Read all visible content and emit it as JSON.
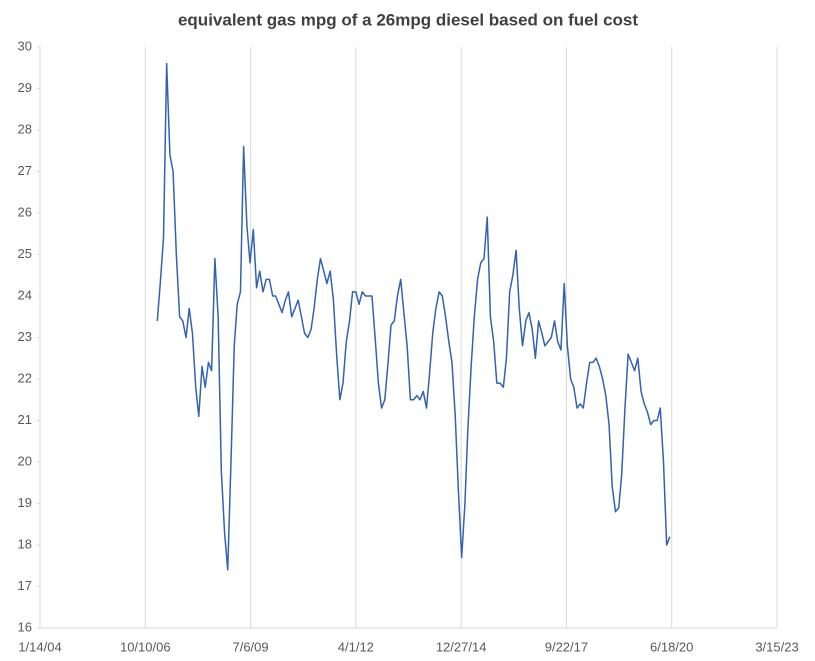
{
  "chart_data": {
    "type": "line",
    "title": "equivalent gas mpg of a 26mpg diesel based on fuel cost",
    "x": [
      "2007-02-01",
      "2007-03-01",
      "2007-04-01",
      "2007-05-01",
      "2007-06-01",
      "2007-07-01",
      "2007-08-01",
      "2007-09-01",
      "2007-10-01",
      "2007-11-01",
      "2007-12-01",
      "2008-01-01",
      "2008-02-01",
      "2008-03-01",
      "2008-04-01",
      "2008-05-01",
      "2008-06-01",
      "2008-07-01",
      "2008-08-01",
      "2008-09-01",
      "2008-10-01",
      "2008-11-01",
      "2008-12-01",
      "2009-01-01",
      "2009-02-01",
      "2009-03-01",
      "2009-04-01",
      "2009-05-01",
      "2009-06-01",
      "2009-07-01",
      "2009-08-01",
      "2009-09-01",
      "2009-10-01",
      "2009-11-01",
      "2009-12-01",
      "2010-01-01",
      "2010-02-01",
      "2010-03-01",
      "2010-04-01",
      "2010-05-01",
      "2010-06-01",
      "2010-07-01",
      "2010-08-01",
      "2010-09-01",
      "2010-10-01",
      "2010-11-01",
      "2010-12-01",
      "2011-01-01",
      "2011-02-01",
      "2011-03-01",
      "2011-04-01",
      "2011-05-01",
      "2011-06-01",
      "2011-07-01",
      "2011-08-01",
      "2011-09-01",
      "2011-10-01",
      "2011-11-01",
      "2011-12-01",
      "2012-01-01",
      "2012-02-01",
      "2012-03-01",
      "2012-04-01",
      "2012-05-01",
      "2012-06-01",
      "2012-07-01",
      "2012-08-01",
      "2012-09-01",
      "2012-10-01",
      "2012-11-01",
      "2012-12-01",
      "2013-01-01",
      "2013-02-01",
      "2013-03-01",
      "2013-04-01",
      "2013-05-01",
      "2013-06-01",
      "2013-07-01",
      "2013-08-01",
      "2013-09-01",
      "2013-10-01",
      "2013-11-01",
      "2013-12-01",
      "2014-01-01",
      "2014-02-01",
      "2014-03-01",
      "2014-04-01",
      "2014-05-01",
      "2014-06-01",
      "2014-07-01",
      "2014-08-01",
      "2014-09-01",
      "2014-10-01",
      "2014-11-01",
      "2014-12-01",
      "2015-01-01",
      "2015-02-01",
      "2015-03-01",
      "2015-04-01",
      "2015-05-01",
      "2015-06-01",
      "2015-07-01",
      "2015-08-01",
      "2015-09-01",
      "2015-10-01",
      "2015-11-01",
      "2015-12-01",
      "2016-01-01",
      "2016-02-01",
      "2016-03-01",
      "2016-04-01",
      "2016-05-01",
      "2016-06-01",
      "2016-07-01",
      "2016-08-01",
      "2016-09-01",
      "2016-10-01",
      "2016-11-01",
      "2016-12-01",
      "2017-01-01",
      "2017-02-01",
      "2017-03-01",
      "2017-04-01",
      "2017-05-01",
      "2017-06-01",
      "2017-07-01",
      "2017-08-01",
      "2017-09-01",
      "2017-10-01",
      "2017-11-01",
      "2017-12-01",
      "2018-01-01",
      "2018-02-01",
      "2018-03-01",
      "2018-04-01",
      "2018-05-01",
      "2018-06-01",
      "2018-07-01",
      "2018-08-01",
      "2018-09-01",
      "2018-10-01",
      "2018-11-01",
      "2018-12-01",
      "2019-01-01",
      "2019-02-01",
      "2019-03-01",
      "2019-04-01",
      "2019-05-01",
      "2019-06-01",
      "2019-07-01",
      "2019-08-01",
      "2019-09-01",
      "2019-10-01",
      "2019-11-01",
      "2019-12-01",
      "2020-01-01",
      "2020-02-01",
      "2020-03-01",
      "2020-04-01",
      "2020-05-01",
      "2020-06-01"
    ],
    "values": [
      23.4,
      24.3,
      25.4,
      29.6,
      27.4,
      27.0,
      25.0,
      23.5,
      23.4,
      23.0,
      23.7,
      23.1,
      21.8,
      21.1,
      22.3,
      21.8,
      22.4,
      22.2,
      24.9,
      23.5,
      19.8,
      18.3,
      17.4,
      20.0,
      22.8,
      23.8,
      24.1,
      27.6,
      25.7,
      24.8,
      25.6,
      24.2,
      24.6,
      24.1,
      24.4,
      24.4,
      24.0,
      24.0,
      23.8,
      23.6,
      23.9,
      24.1,
      23.5,
      23.7,
      23.9,
      23.5,
      23.1,
      23.0,
      23.2,
      23.7,
      24.4,
      24.9,
      24.6,
      24.3,
      24.6,
      23.9,
      22.6,
      21.5,
      21.9,
      22.9,
      23.4,
      24.1,
      24.1,
      23.8,
      24.1,
      24.0,
      24.0,
      24.0,
      23.0,
      21.9,
      21.3,
      21.5,
      22.4,
      23.3,
      23.4,
      24.0,
      24.4,
      23.6,
      22.8,
      21.5,
      21.5,
      21.6,
      21.5,
      21.7,
      21.3,
      22.1,
      23.1,
      23.7,
      24.1,
      24.0,
      23.5,
      22.9,
      22.4,
      21.1,
      19.3,
      17.7,
      19.0,
      20.8,
      22.3,
      23.5,
      24.4,
      24.8,
      24.9,
      25.9,
      23.5,
      22.9,
      21.9,
      21.9,
      21.8,
      22.5,
      24.1,
      24.5,
      25.1,
      23.7,
      22.8,
      23.4,
      23.6,
      23.2,
      22.5,
      23.4,
      23.1,
      22.8,
      22.9,
      23.0,
      23.4,
      22.9,
      22.7,
      24.3,
      22.8,
      22.0,
      21.8,
      21.3,
      21.4,
      21.3,
      21.9,
      22.4,
      22.4,
      22.5,
      22.3,
      22.0,
      21.6,
      20.9,
      19.4,
      18.8,
      18.9,
      19.7,
      21.3,
      22.6,
      22.4,
      22.2,
      22.5,
      21.7,
      21.4,
      21.2,
      20.9,
      21.0,
      21.0,
      21.3,
      20.0,
      18.0,
      18.2
    ],
    "color": "#3262b0",
    "xlim": [
      "2004-01-14",
      "2023-03-15"
    ],
    "xticks": [
      {
        "value": "2004-01-14",
        "label": "1/14/04"
      },
      {
        "value": "2006-10-10",
        "label": "10/10/06"
      },
      {
        "value": "2009-07-06",
        "label": "7/6/09"
      },
      {
        "value": "2012-04-01",
        "label": "4/1/12"
      },
      {
        "value": "2014-12-27",
        "label": "12/27/14"
      },
      {
        "value": "2017-09-22",
        "label": "9/22/17"
      },
      {
        "value": "2020-06-18",
        "label": "6/18/20"
      },
      {
        "value": "2023-03-15",
        "label": "3/15/23"
      }
    ],
    "ylim": [
      16,
      30
    ],
    "yticks": [
      16,
      17,
      18,
      19,
      20,
      21,
      22,
      23,
      24,
      25,
      26,
      27,
      28,
      29,
      30
    ],
    "grid": "x"
  }
}
